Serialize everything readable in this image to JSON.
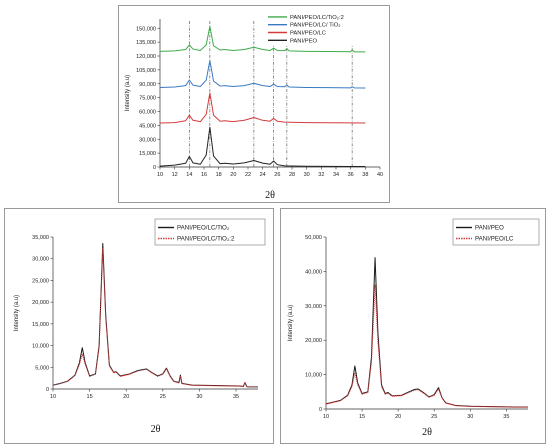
{
  "chart_data": [
    {
      "type": "line",
      "stacked_offsets": true,
      "xlabel": "2θ",
      "ylabel": "Intensity (a.u)",
      "xlim": [
        10,
        40
      ],
      "ylim": [
        0,
        160000
      ],
      "xticks": [
        10,
        12,
        14,
        16,
        18,
        20,
        22,
        24,
        26,
        28,
        30,
        32,
        34,
        36,
        38,
        40
      ],
      "yticks": [
        0,
        15000,
        30000,
        45000,
        60000,
        75000,
        90000,
        105000,
        120000,
        135000,
        150000
      ],
      "ytick_labels": [
        "0",
        "15,000",
        "30,000",
        "45,000",
        "60,000",
        "75,000",
        "90,000",
        "105,000",
        "120,000",
        "135,000",
        "150,000"
      ],
      "reference_lines_x": [
        14.0,
        16.8,
        22.8,
        25.5,
        27.3,
        36.2
      ],
      "legend_position": "top-right",
      "series": [
        {
          "name": "PANI/PEO/LC/TiO₂:2",
          "color": "#3daa4a",
          "x": [
            10,
            12,
            13.5,
            14.0,
            14.5,
            15.5,
            16.3,
            16.8,
            17.3,
            18.2,
            18.8,
            20,
            21.5,
            22.8,
            24,
            25,
            25.5,
            26,
            27,
            27.3,
            27.6,
            30,
            33,
            36,
            36.2,
            36.5,
            38
          ],
          "y": [
            125000,
            125500,
            127000,
            132000,
            127500,
            126000,
            132000,
            152000,
            131000,
            126500,
            127000,
            126000,
            127000,
            129500,
            127000,
            126000,
            128500,
            126000,
            125800,
            128000,
            125500,
            125000,
            124800,
            124600,
            126500,
            124500,
            124400
          ]
        },
        {
          "name": "PANI/PEO/LC/ TiO₂",
          "color": "#3a79c2",
          "x": [
            10,
            12,
            13.5,
            14.0,
            14.5,
            15.5,
            16.3,
            16.8,
            17.3,
            18.2,
            18.8,
            20,
            21.5,
            22.8,
            24,
            25,
            25.5,
            26,
            27,
            27.3,
            27.6,
            30,
            33,
            36,
            36.2,
            36.5,
            38
          ],
          "y": [
            86000,
            86500,
            88000,
            94000,
            88500,
            87000,
            94000,
            115000,
            93000,
            87500,
            88000,
            87000,
            88000,
            90500,
            88000,
            87000,
            89500,
            87000,
            86800,
            88500,
            86500,
            86000,
            85800,
            85600,
            86800,
            85500,
            85400
          ]
        },
        {
          "name": "PANI/PEO/LC",
          "color": "#d33c3c",
          "x": [
            10,
            12,
            13.5,
            14.0,
            14.5,
            15.5,
            16.3,
            16.8,
            17.3,
            18.2,
            18.8,
            20,
            21.5,
            22.8,
            24,
            25,
            25.5,
            26,
            27,
            30,
            33,
            36,
            38
          ],
          "y": [
            47500,
            48000,
            50000,
            56000,
            50500,
            49000,
            57000,
            80000,
            56000,
            49500,
            50000,
            49000,
            50500,
            53500,
            50500,
            49500,
            52500,
            49500,
            48500,
            48000,
            47800,
            47700,
            47600
          ]
        },
        {
          "name": "PANI/PEO",
          "color": "#222222",
          "x": [
            10,
            12,
            13.5,
            14.0,
            14.5,
            15.5,
            16.3,
            16.8,
            17.3,
            18.2,
            18.8,
            20,
            21.5,
            22.8,
            24,
            25,
            25.5,
            26,
            27,
            30,
            33,
            36,
            38
          ],
          "y": [
            1000,
            2000,
            4000,
            11500,
            4500,
            3000,
            13000,
            43000,
            12000,
            3500,
            4000,
            3200,
            4500,
            7000,
            4200,
            3000,
            6500,
            2500,
            1200,
            800,
            700,
            600,
            600
          ]
        }
      ]
    },
    {
      "type": "line",
      "xlabel": "2θ",
      "ylabel": "Intensity (a.u)",
      "xlim": [
        10,
        38
      ],
      "ylim": [
        0,
        35000
      ],
      "xticks": [
        10,
        15,
        20,
        25,
        30,
        35
      ],
      "yticks": [
        0,
        5000,
        10000,
        15000,
        20000,
        25000,
        30000,
        35000
      ],
      "ytick_labels": [
        "0",
        "5,000",
        "10,000",
        "15,000",
        "20,000",
        "25,000",
        "30,000",
        "35,000"
      ],
      "legend_position": "top-right",
      "series": [
        {
          "name": "PANI/PEO/LC/TiO₂",
          "color": "#1a1a1a",
          "dash": "solid",
          "x": [
            10,
            11,
            12,
            13,
            13.6,
            14.0,
            14.4,
            15,
            15.8,
            16.3,
            16.8,
            17.2,
            17.7,
            18.3,
            18.6,
            19.2,
            20.5,
            21.5,
            22.3,
            22.8,
            23.5,
            24.3,
            25.0,
            25.5,
            26.0,
            26.5,
            27.2,
            27.4,
            27.6,
            29,
            32,
            35.5,
            36.0,
            36.2,
            36.5,
            37,
            38
          ],
          "y": [
            900,
            1300,
            1800,
            3200,
            6000,
            9500,
            6000,
            3000,
            3500,
            10000,
            33500,
            17000,
            5500,
            3800,
            4000,
            3000,
            3500,
            4200,
            4500,
            4600,
            3800,
            3000,
            3500,
            4800,
            3000,
            1800,
            1500,
            3200,
            1300,
            900,
            800,
            700,
            600,
            1500,
            500,
            500,
            500
          ]
        },
        {
          "name": "PANI/PEO/LC/TiO₂:2",
          "color": "#d33c3c",
          "dash": "dotted",
          "x": [
            10,
            11,
            12,
            13,
            13.6,
            14.0,
            14.4,
            15,
            15.8,
            16.3,
            16.8,
            17.2,
            17.7,
            18.3,
            18.6,
            19.2,
            20.5,
            21.5,
            22.3,
            22.8,
            23.5,
            24.3,
            25.0,
            25.5,
            26.0,
            26.5,
            27.2,
            27.4,
            27.6,
            29,
            32,
            35.5,
            36.0,
            36.2,
            36.5,
            37,
            38
          ],
          "y": [
            850,
            1250,
            1750,
            3100,
            5600,
            8000,
            5700,
            2900,
            3400,
            9600,
            32500,
            16500,
            5300,
            3700,
            3900,
            2900,
            3400,
            4100,
            4400,
            4500,
            3700,
            2900,
            3400,
            4600,
            2900,
            1700,
            1400,
            3000,
            1250,
            850,
            750,
            650,
            550,
            1400,
            450,
            450,
            450
          ]
        }
      ]
    },
    {
      "type": "line",
      "xlabel": "2θ",
      "ylabel": "Intensity (a.u)",
      "xlim": [
        10,
        38
      ],
      "ylim": [
        0,
        50000
      ],
      "xticks": [
        10,
        15,
        20,
        25,
        30,
        35
      ],
      "yticks": [
        0,
        10000,
        20000,
        30000,
        40000,
        50000
      ],
      "ytick_labels": [
        "0",
        "10,000",
        "20,000",
        "30,000",
        "40,000",
        "50,000"
      ],
      "legend_position": "top-right",
      "series": [
        {
          "name": "PANI/PEO",
          "color": "#1a1a1a",
          "dash": "solid",
          "x": [
            10,
            11,
            12,
            13,
            13.6,
            14.0,
            14.4,
            15,
            15.8,
            16.3,
            16.8,
            17.2,
            17.7,
            18.2,
            18.6,
            19.2,
            20.5,
            21.5,
            22.3,
            22.8,
            23.5,
            24.3,
            25.0,
            25.6,
            26.1,
            26.6,
            28,
            30,
            33,
            36,
            38
          ],
          "y": [
            1500,
            2000,
            2500,
            4000,
            7000,
            12500,
            7500,
            4500,
            5000,
            15000,
            44000,
            22000,
            7000,
            4500,
            4800,
            3800,
            4000,
            5000,
            5700,
            5800,
            4800,
            3500,
            4200,
            6200,
            3200,
            1800,
            1000,
            800,
            700,
            600,
            600
          ]
        },
        {
          "name": "PANI/PEO/LC",
          "color": "#d33c3c",
          "dash": "dotted",
          "x": [
            10,
            11,
            12,
            13,
            13.6,
            14.0,
            14.4,
            15,
            15.8,
            16.3,
            16.8,
            17.2,
            17.7,
            18.2,
            18.6,
            19.2,
            20.5,
            21.5,
            22.3,
            22.8,
            23.5,
            24.3,
            25.0,
            25.6,
            26.1,
            26.6,
            28,
            30,
            33,
            36,
            38
          ],
          "y": [
            1400,
            1900,
            2400,
            3800,
            6500,
            10500,
            7000,
            4300,
            4800,
            13500,
            36000,
            19500,
            6500,
            4300,
            4600,
            3700,
            3900,
            4800,
            5500,
            5600,
            4600,
            3400,
            4000,
            5800,
            3100,
            1700,
            950,
            750,
            650,
            550,
            550
          ]
        }
      ]
    }
  ]
}
